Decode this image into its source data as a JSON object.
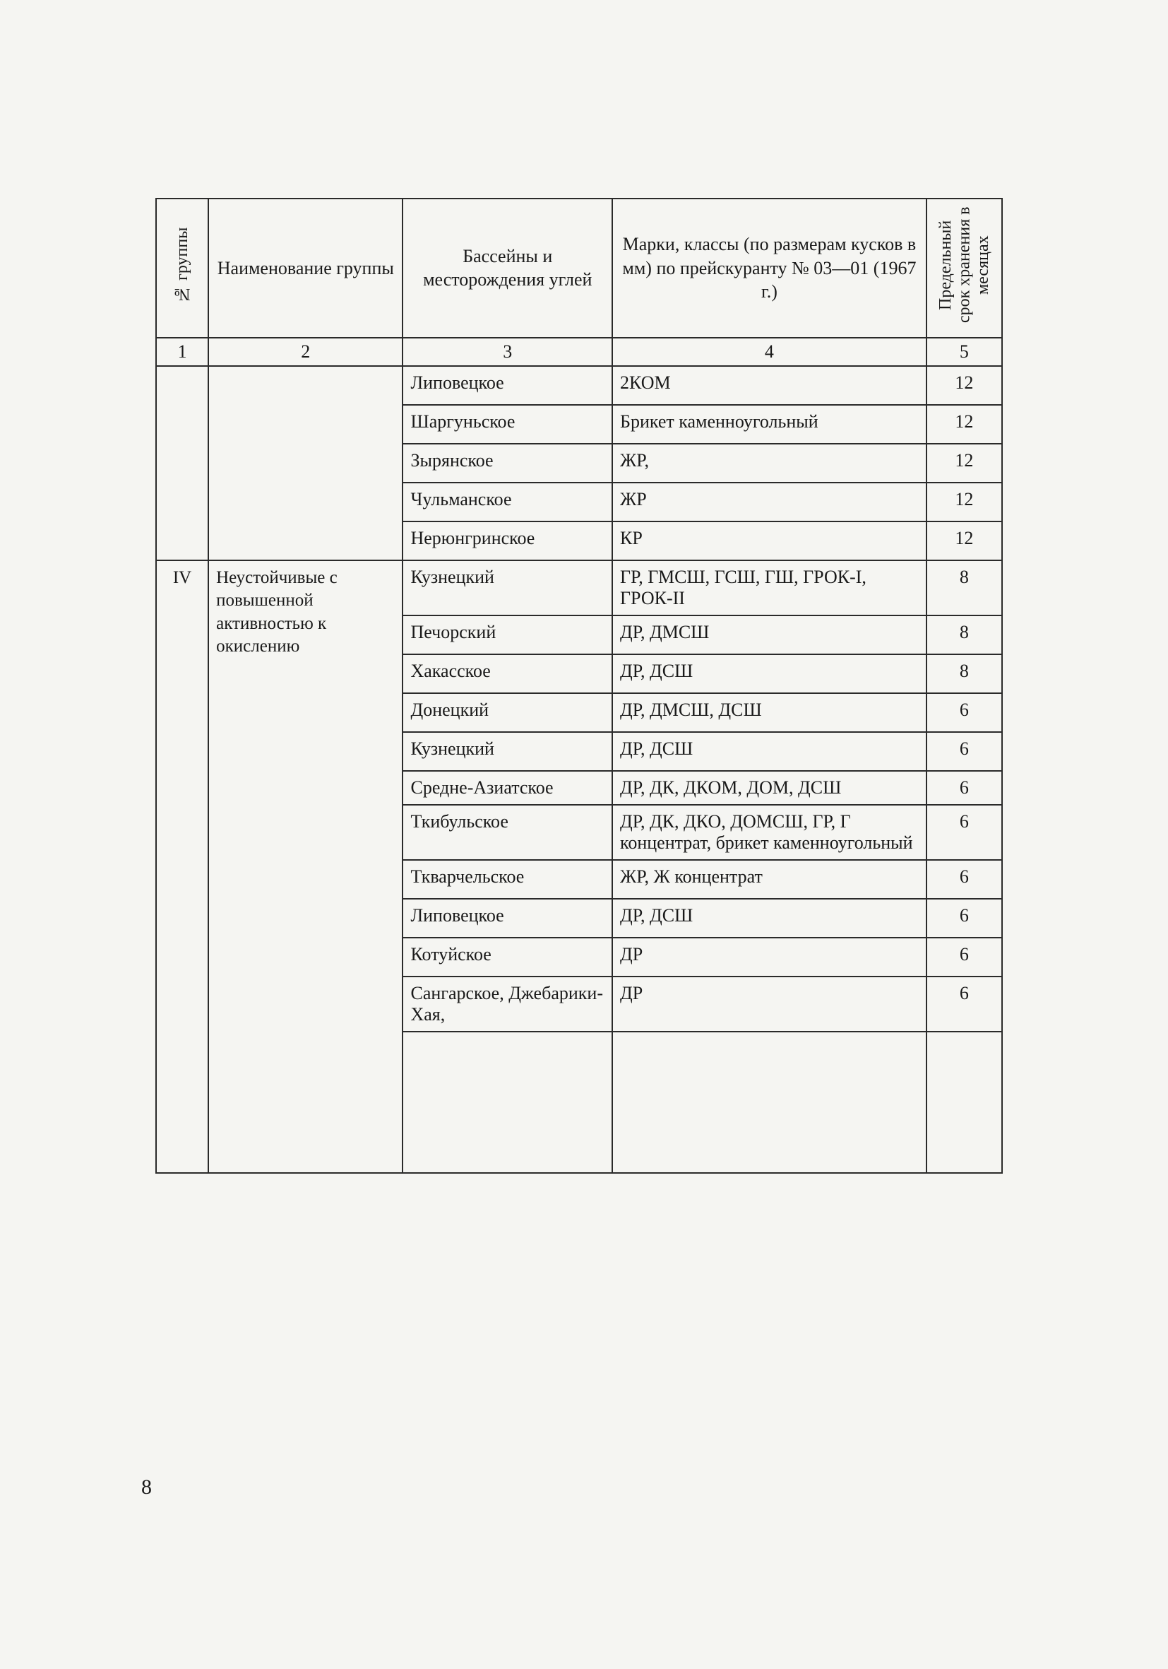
{
  "headers": {
    "col1_vertical": "№ группы",
    "col2": "Наименование группы",
    "col3": "Бассейны и месторождения углей",
    "col4": "Марки, классы (по размерам кусков в мм) по прейскуранту № 03—01 (1967 г.)",
    "col5_vertical": "Предельный срок хранения в месяцах"
  },
  "subheaders": {
    "c1": "1",
    "c2": "2",
    "c3": "3",
    "c4": "4",
    "c5": "5"
  },
  "rows": [
    {
      "c3": "Липовецкое",
      "c4": "2КОМ",
      "c5": "12"
    },
    {
      "c3": "Шаргуньское",
      "c4": "Брикет каменноугольный",
      "c5": "12"
    },
    {
      "c3": "Зырянское",
      "c4": "ЖР,",
      "c5": "12"
    },
    {
      "c3": "Чульманское",
      "c4": "ЖР",
      "c5": "12"
    },
    {
      "c3": "Нерюнгринское",
      "c4": "КР",
      "c5": "12"
    },
    {
      "c3": "Кузнецкий",
      "c4": "ГР, ГМСШ, ГСШ, ГШ, ГРОК-I, ГРОК-II",
      "c5": "8"
    },
    {
      "c3": "Печорский",
      "c4": "ДР, ДМСШ",
      "c5": "8"
    },
    {
      "c3": "Хакасское",
      "c4": "ДР, ДСШ",
      "c5": "8"
    },
    {
      "c3": "Донецкий",
      "c4": "ДР, ДМСШ, ДСШ",
      "c5": "6"
    },
    {
      "c3": "Кузнецкий",
      "c4": "ДР, ДСШ",
      "c5": "6"
    },
    {
      "c3": "Средне-Азиатское",
      "c4": "ДР, ДК, ДКОМ, ДОМ, ДСШ",
      "c5": "6"
    },
    {
      "c3": "Ткибульское",
      "c4": "ДР, ДК, ДКО, ДОМСШ, ГР, Г концентрат, брикет каменноугольный",
      "c5": "6"
    },
    {
      "c3": "Ткварчельское",
      "c4": "ЖР, Ж концентрат",
      "c5": "6"
    },
    {
      "c3": "Липовецкое",
      "c4": "ДР, ДСШ",
      "c5": "6"
    },
    {
      "c3": "Котуйское",
      "c4": "ДР",
      "c5": "6"
    },
    {
      "c3": "Сангарское, Джебарики-Хая,",
      "c4": "ДР",
      "c5": "6"
    }
  ],
  "group": {
    "number": "IV",
    "name": "Неустойчивые с повышенной активностью к окислению"
  },
  "pageNumber": "8"
}
